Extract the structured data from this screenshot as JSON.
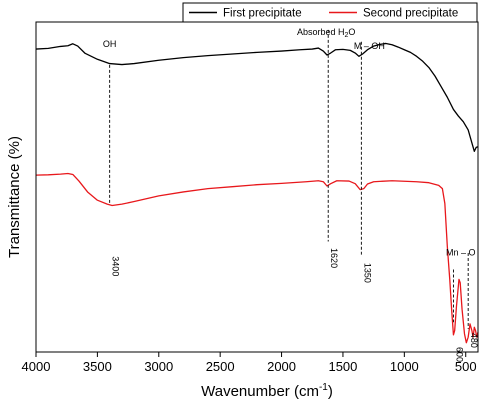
{
  "chart_data": {
    "type": "line",
    "xlabel_main": "Wavenumber (cm",
    "xlabel_sup": "-1",
    "xlabel_tail": ")",
    "ylabel": "Transmittance (%)",
    "xlim": [
      4000,
      400
    ],
    "x_reversed": true,
    "x_ticks": [
      4000,
      3500,
      3000,
      2500,
      2000,
      1500,
      1000,
      500
    ],
    "y_ticks": [],
    "y_unit_range": [
      0,
      100
    ],
    "grid": false,
    "legend_position": "top-right",
    "series": [
      {
        "name": "First precipitate",
        "color": "#000000",
        "points": [
          [
            4000,
            91.8
          ],
          [
            3900,
            92.0
          ],
          [
            3800,
            92.6
          ],
          [
            3740,
            92.8
          ],
          [
            3700,
            93.4
          ],
          [
            3660,
            92.7
          ],
          [
            3600,
            90.5
          ],
          [
            3500,
            88.7
          ],
          [
            3400,
            87.4
          ],
          [
            3300,
            87.1
          ],
          [
            3200,
            87.4
          ],
          [
            3000,
            88.4
          ],
          [
            2800,
            89.2
          ],
          [
            2600,
            89.8
          ],
          [
            2400,
            90.3
          ],
          [
            2200,
            90.8
          ],
          [
            2000,
            91.2
          ],
          [
            1850,
            91.6
          ],
          [
            1750,
            91.8
          ],
          [
            1700,
            92.1
          ],
          [
            1660,
            91.2
          ],
          [
            1630,
            90.0
          ],
          [
            1600,
            90.6
          ],
          [
            1560,
            91.6
          ],
          [
            1500,
            91.7
          ],
          [
            1440,
            91.4
          ],
          [
            1400,
            90.6
          ],
          [
            1370,
            89.6
          ],
          [
            1340,
            90.3
          ],
          [
            1300,
            91.6
          ],
          [
            1250,
            92.7
          ],
          [
            1200,
            93.2
          ],
          [
            1150,
            93.5
          ],
          [
            1100,
            93.1
          ],
          [
            1050,
            92.4
          ],
          [
            1000,
            91.6
          ],
          [
            950,
            90.8
          ],
          [
            900,
            89.6
          ],
          [
            850,
            88.1
          ],
          [
            800,
            86.2
          ],
          [
            750,
            83.6
          ],
          [
            700,
            80.4
          ],
          [
            650,
            77.2
          ],
          [
            600,
            73.5
          ],
          [
            560,
            71.5
          ],
          [
            520,
            69.8
          ],
          [
            480,
            67.3
          ],
          [
            450,
            63.4
          ],
          [
            430,
            60.8
          ],
          [
            415,
            62.0
          ],
          [
            400,
            62.2
          ]
        ]
      },
      {
        "name": "Second precipitate",
        "color": "#e8181c",
        "points": [
          [
            4000,
            53.6
          ],
          [
            3900,
            53.7
          ],
          [
            3800,
            53.9
          ],
          [
            3740,
            54.1
          ],
          [
            3700,
            53.8
          ],
          [
            3650,
            51.8
          ],
          [
            3580,
            48.5
          ],
          [
            3500,
            46.0
          ],
          [
            3420,
            44.8
          ],
          [
            3380,
            44.4
          ],
          [
            3300,
            44.8
          ],
          [
            3200,
            45.6
          ],
          [
            3000,
            47.3
          ],
          [
            2800,
            48.5
          ],
          [
            2600,
            49.5
          ],
          [
            2400,
            50.1
          ],
          [
            2200,
            50.7
          ],
          [
            2000,
            51.1
          ],
          [
            1800,
            51.6
          ],
          [
            1700,
            51.9
          ],
          [
            1660,
            51.6
          ],
          [
            1630,
            50.3
          ],
          [
            1600,
            51.0
          ],
          [
            1550,
            51.9
          ],
          [
            1450,
            51.8
          ],
          [
            1400,
            51.0
          ],
          [
            1360,
            49.2
          ],
          [
            1330,
            49.5
          ],
          [
            1300,
            50.9
          ],
          [
            1250,
            51.6
          ],
          [
            1100,
            51.9
          ],
          [
            900,
            51.6
          ],
          [
            800,
            51.3
          ],
          [
            720,
            50.5
          ],
          [
            690,
            49.5
          ],
          [
            670,
            45.0
          ],
          [
            650,
            32.0
          ],
          [
            630,
            22.0
          ],
          [
            615,
            13.0
          ],
          [
            600,
            5.2
          ],
          [
            590,
            6.5
          ],
          [
            575,
            14.0
          ],
          [
            555,
            22.0
          ],
          [
            545,
            21.0
          ],
          [
            530,
            13.0
          ],
          [
            510,
            5.5
          ],
          [
            495,
            2.8
          ],
          [
            480,
            4.5
          ],
          [
            465,
            8.5
          ],
          [
            450,
            6.5
          ],
          [
            440,
            4.5
          ],
          [
            430,
            7.5
          ],
          [
            420,
            6.5
          ],
          [
            410,
            4.5
          ],
          [
            400,
            6.0
          ]
        ]
      }
    ],
    "annotations": [
      {
        "text": "OH",
        "x": 3400,
        "y_top": 87.5,
        "y_bottom": 44.8,
        "label_pos": "top"
      },
      {
        "text": "3400",
        "x": 3400,
        "rotated": true
      },
      {
        "text_main": "Absorbed H",
        "text_sub": "2",
        "text_tail": "O",
        "x": 1620,
        "label_pos": "top"
      },
      {
        "text": "1620",
        "x": 1620,
        "rotated": true
      },
      {
        "text": "M – OH",
        "x": 1350,
        "label_pos": "top"
      },
      {
        "text": "1350",
        "x": 1350,
        "rotated": true
      },
      {
        "text": "Mn – O",
        "x": 540,
        "label_pos": "top"
      },
      {
        "text": "600",
        "x": 600,
        "rotated": true
      },
      {
        "text": "480",
        "x": 480,
        "rotated": true
      }
    ]
  }
}
